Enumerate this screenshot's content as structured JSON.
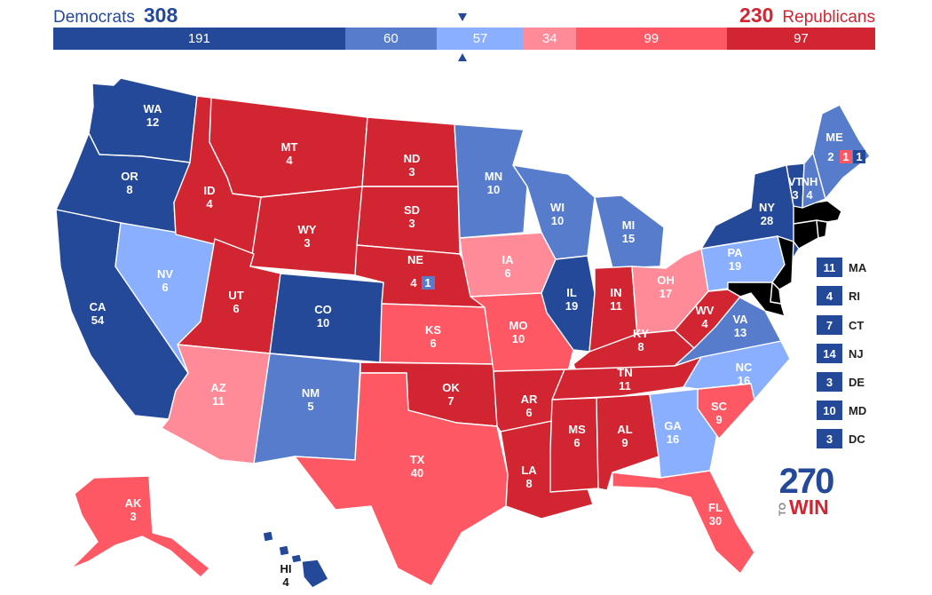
{
  "header": {
    "dem_label": "Democrats",
    "dem_total": "308",
    "rep_total": "230",
    "rep_label": "Republicans"
  },
  "colors": {
    "safe_d": "#244999",
    "likely_d": "#577ccc",
    "lean_d": "#8aafff",
    "lean_r": "#ff8b98",
    "likely_r": "#ff5865",
    "safe_r": "#d22532"
  },
  "bar": {
    "segments": [
      {
        "label": "191",
        "value": 191,
        "color": "#244999"
      },
      {
        "label": "60",
        "value": 60,
        "color": "#577ccc"
      },
      {
        "label": "57",
        "value": 57,
        "color": "#8aafff"
      },
      {
        "label": "34",
        "value": 34,
        "color": "#ff8b98"
      },
      {
        "label": "99",
        "value": 99,
        "color": "#ff5865"
      },
      {
        "label": "97",
        "value": 97,
        "color": "#d22532"
      }
    ]
  },
  "states": {
    "WA": {
      "ev": "12",
      "rating": "safe_d"
    },
    "OR": {
      "ev": "8",
      "rating": "safe_d"
    },
    "CA": {
      "ev": "54",
      "rating": "safe_d"
    },
    "NV": {
      "ev": "6",
      "rating": "lean_d"
    },
    "ID": {
      "ev": "4",
      "rating": "safe_r"
    },
    "MT": {
      "ev": "4",
      "rating": "safe_r"
    },
    "WY": {
      "ev": "3",
      "rating": "safe_r"
    },
    "UT": {
      "ev": "6",
      "rating": "safe_r"
    },
    "AZ": {
      "ev": "11",
      "rating": "lean_r"
    },
    "CO": {
      "ev": "10",
      "rating": "safe_d"
    },
    "NM": {
      "ev": "5",
      "rating": "likely_d"
    },
    "ND": {
      "ev": "3",
      "rating": "safe_r"
    },
    "SD": {
      "ev": "3",
      "rating": "safe_r"
    },
    "NE": {
      "ev": "4",
      "rating": "safe_r",
      "district": "1"
    },
    "KS": {
      "ev": "6",
      "rating": "likely_r"
    },
    "OK": {
      "ev": "7",
      "rating": "safe_r"
    },
    "TX": {
      "ev": "40",
      "rating": "likely_r"
    },
    "MN": {
      "ev": "10",
      "rating": "likely_d"
    },
    "IA": {
      "ev": "6",
      "rating": "lean_r"
    },
    "MO": {
      "ev": "10",
      "rating": "likely_r"
    },
    "AR": {
      "ev": "6",
      "rating": "safe_r"
    },
    "LA": {
      "ev": "8",
      "rating": "safe_r"
    },
    "WI": {
      "ev": "10",
      "rating": "likely_d"
    },
    "IL": {
      "ev": "19",
      "rating": "safe_d"
    },
    "MI": {
      "ev": "15",
      "rating": "likely_d"
    },
    "IN": {
      "ev": "11",
      "rating": "safe_r"
    },
    "OH": {
      "ev": "17",
      "rating": "lean_r"
    },
    "KY": {
      "ev": "8",
      "rating": "safe_r"
    },
    "TN": {
      "ev": "11",
      "rating": "safe_r"
    },
    "MS": {
      "ev": "6",
      "rating": "safe_r"
    },
    "AL": {
      "ev": "9",
      "rating": "safe_r"
    },
    "GA": {
      "ev": "16",
      "rating": "lean_d"
    },
    "FL": {
      "ev": "30",
      "rating": "likely_r"
    },
    "SC": {
      "ev": "9",
      "rating": "likely_r"
    },
    "NC": {
      "ev": "16",
      "rating": "lean_d"
    },
    "VA": {
      "ev": "13",
      "rating": "likely_d"
    },
    "WV": {
      "ev": "4",
      "rating": "safe_r"
    },
    "PA": {
      "ev": "19",
      "rating": "lean_d"
    },
    "NY": {
      "ev": "28",
      "rating": "safe_d"
    },
    "VT": {
      "ev": "3",
      "rating": "safe_d"
    },
    "NH": {
      "ev": "4",
      "rating": "likely_d"
    },
    "ME": {
      "ev": "2",
      "rating": "likely_d",
      "cd1": "1",
      "cd2": "1"
    },
    "AK": {
      "ev": "3",
      "rating": "likely_r"
    },
    "HI": {
      "ev": "4",
      "rating": "safe_d"
    }
  },
  "small_states": [
    {
      "abbr": "MA",
      "ev": "11",
      "color": "#244999"
    },
    {
      "abbr": "RI",
      "ev": "4",
      "color": "#244999"
    },
    {
      "abbr": "CT",
      "ev": "7",
      "color": "#244999"
    },
    {
      "abbr": "NJ",
      "ev": "14",
      "color": "#244999"
    },
    {
      "abbr": "DE",
      "ev": "3",
      "color": "#244999"
    },
    {
      "abbr": "MD",
      "ev": "10",
      "color": "#244999"
    },
    {
      "abbr": "DC",
      "ev": "3",
      "color": "#244999"
    }
  ],
  "logo": {
    "number": "270",
    "to": "TO",
    "win": "WIN"
  }
}
